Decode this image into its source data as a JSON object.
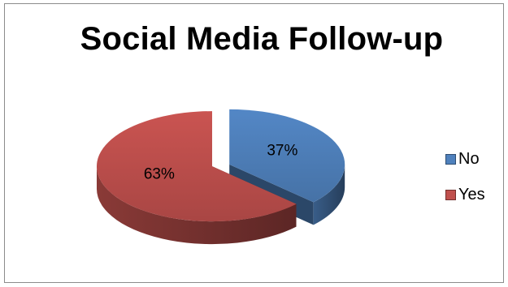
{
  "chart_data": {
    "type": "pie",
    "title": "Social Media Follow-up",
    "categories": [
      "No",
      "Yes"
    ],
    "values": [
      37,
      63
    ],
    "labels": [
      "37%",
      "63%"
    ],
    "legend_position": "right",
    "three_d": true,
    "exploded": true,
    "colors": {
      "No": "#4f81bd",
      "Yes": "#c0504d"
    }
  }
}
